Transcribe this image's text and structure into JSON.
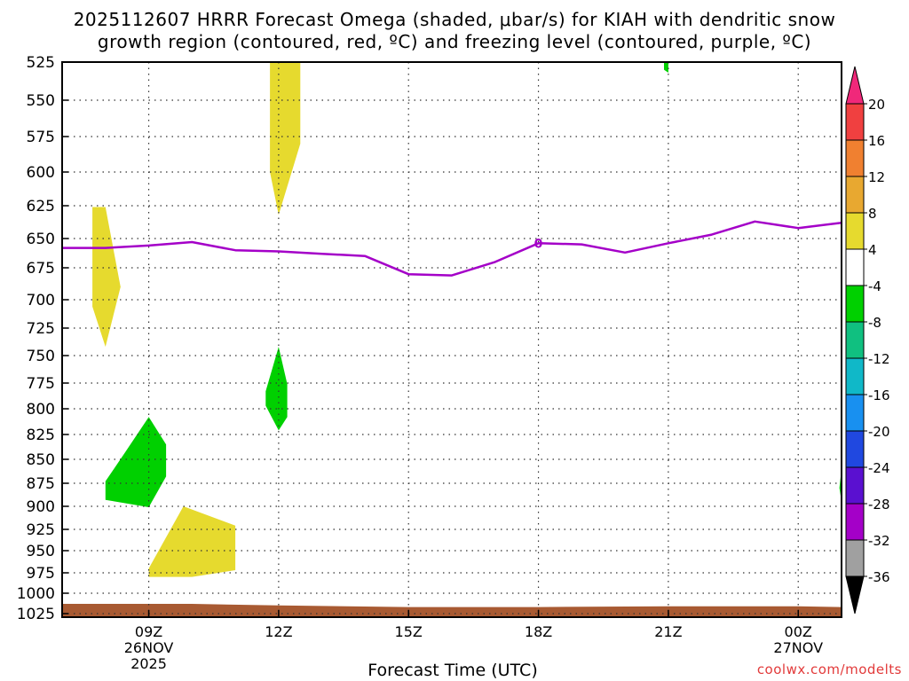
{
  "header": {
    "title_line1": "2025112607 HRRR Forecast Omega (shaded, μbar/s) for KIAH with dendritic snow",
    "title_line2": "growth region (contoured, red, ºC) and freezing level (contoured, purple, ºC)"
  },
  "footer": {
    "credit": "coolwx.com/modelts",
    "xaxis_title": "Forecast Time (UTC)"
  },
  "chart_data": {
    "type": "time-height contour",
    "model_run": "2025112607",
    "station": "KIAH",
    "x_range_hours": [
      7,
      25
    ],
    "x_ticks": [
      {
        "hour": 9,
        "label": "09Z",
        "date": "26NOV",
        "year": "2025"
      },
      {
        "hour": 12,
        "label": "12Z",
        "date": "",
        "year": ""
      },
      {
        "hour": 15,
        "label": "15Z",
        "date": "",
        "year": ""
      },
      {
        "hour": 18,
        "label": "18Z",
        "date": "",
        "year": ""
      },
      {
        "hour": 21,
        "label": "21Z",
        "date": "",
        "year": ""
      },
      {
        "hour": 24,
        "label": "00Z",
        "date": "27NOV",
        "year": ""
      }
    ],
    "y_range_hPa": [
      525,
      1025
    ],
    "y_ticks": [
      525,
      550,
      575,
      600,
      625,
      650,
      675,
      700,
      725,
      750,
      775,
      800,
      825,
      850,
      875,
      900,
      925,
      950,
      975,
      1000,
      1025
    ],
    "freezing_level": {
      "color": "#a400c8",
      "label": "0",
      "label_at": [
        18,
        654
      ],
      "points": [
        [
          7,
          658
        ],
        [
          8,
          658
        ],
        [
          9,
          656
        ],
        [
          10,
          653
        ],
        [
          11,
          660
        ],
        [
          12,
          661
        ],
        [
          13,
          663
        ],
        [
          14,
          665
        ],
        [
          15,
          680
        ],
        [
          16,
          681
        ],
        [
          17,
          670
        ],
        [
          18,
          654
        ],
        [
          19,
          655
        ],
        [
          20,
          662
        ],
        [
          21,
          654
        ],
        [
          22,
          647
        ],
        [
          23,
          637
        ],
        [
          24,
          642
        ],
        [
          25,
          638
        ]
      ]
    },
    "omega_shading": [
      {
        "value_range": "4 to 8",
        "color": "#e6da2e",
        "polygon": [
          [
            7.7,
            626
          ],
          [
            8.0,
            626
          ],
          [
            8.35,
            690
          ],
          [
            8.0,
            742
          ],
          [
            7.7,
            706
          ]
        ]
      },
      {
        "value_range": "4 to 8",
        "color": "#e6da2e",
        "polygon": [
          [
            11.8,
            525
          ],
          [
            12.5,
            525
          ],
          [
            12.5,
            580
          ],
          [
            12.0,
            632
          ],
          [
            11.8,
            600
          ]
        ]
      },
      {
        "value_range": "4 to 8",
        "color": "#e6da2e",
        "polygon": [
          [
            9.0,
            970
          ],
          [
            9.8,
            900
          ],
          [
            11.0,
            921
          ],
          [
            11.0,
            972
          ],
          [
            10.0,
            980
          ],
          [
            9.0,
            980
          ]
        ]
      },
      {
        "value_range": "-8 to -4",
        "color": "#00d000",
        "polygon": [
          [
            11.7,
            783
          ],
          [
            12.0,
            742
          ],
          [
            12.2,
            776
          ],
          [
            12.2,
            808
          ],
          [
            12.0,
            821
          ],
          [
            11.7,
            797
          ]
        ]
      },
      {
        "value_range": "-8 to -4",
        "color": "#00d000",
        "polygon": [
          [
            8.0,
            873
          ],
          [
            8.5,
            840
          ],
          [
            9.0,
            808
          ],
          [
            9.4,
            835
          ],
          [
            9.4,
            868
          ],
          [
            9.0,
            901
          ],
          [
            8.0,
            893
          ]
        ]
      },
      {
        "value_range": "-8 to -4",
        "color": "#00d000",
        "polygon": [
          [
            20.9,
            525
          ],
          [
            21.0,
            525
          ],
          [
            21.0,
            532
          ],
          [
            20.9,
            530
          ]
        ]
      },
      {
        "value_range": "-8 to -4",
        "color": "#00d000",
        "polygon": [
          [
            25,
            860
          ],
          [
            25,
            895
          ],
          [
            24.95,
            880
          ]
        ]
      }
    ],
    "ground": {
      "color": "#a85a32",
      "points": [
        [
          7,
          1013
        ],
        [
          10,
          1013
        ],
        [
          12,
          1015
        ],
        [
          15,
          1017
        ],
        [
          18,
          1017
        ],
        [
          21,
          1016
        ],
        [
          24,
          1016
        ],
        [
          25,
          1017
        ]
      ]
    },
    "colorbar": {
      "tick_labels": [
        "20",
        "16",
        "12",
        "8",
        "4",
        "-4",
        "-8",
        "-12",
        "-16",
        "-20",
        "-24",
        "-28",
        "-32",
        "-36"
      ],
      "colors": [
        "#f0287a",
        "#f04040",
        "#f08030",
        "#e8a830",
        "#e6da2e",
        "#ffffff",
        "#00d000",
        "#10c080",
        "#10b8c8",
        "#1890f0",
        "#2048e0",
        "#5a10d0",
        "#a400c8",
        "#a0a0a0",
        "#000000"
      ]
    }
  }
}
